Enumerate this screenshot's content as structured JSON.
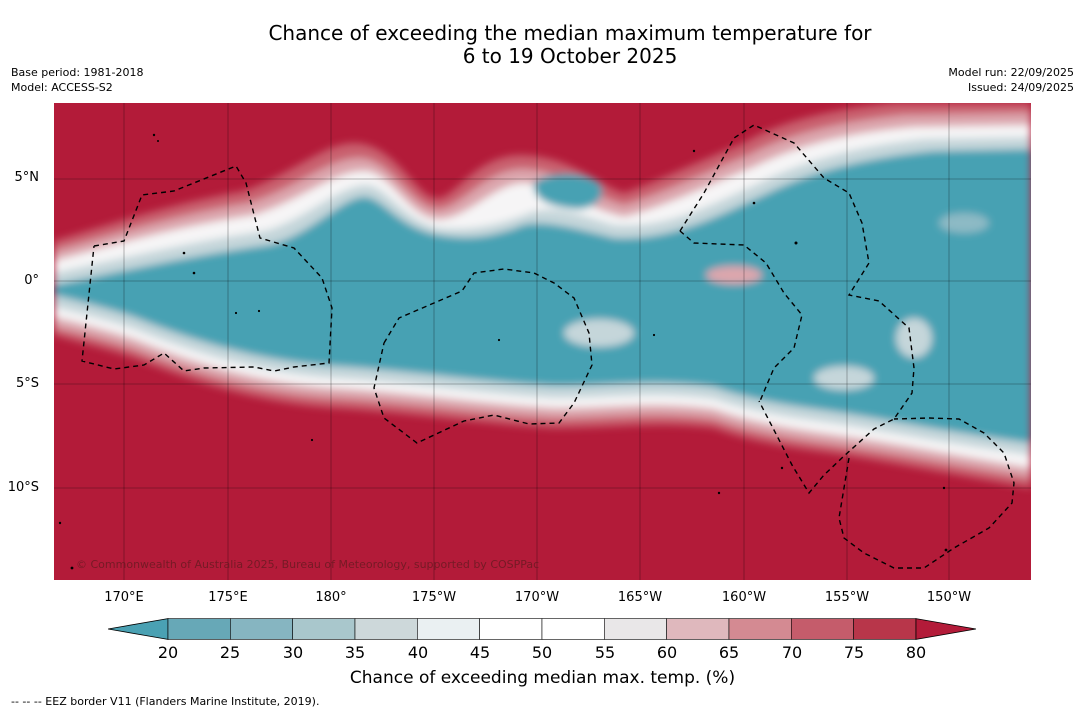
{
  "title_line1": "Chance of exceeding the median maximum temperature for",
  "title_line2": "6 to 19 October 2025",
  "meta": {
    "base_period": "Base period: 1981-2018",
    "model": "Model: ACCESS-S2",
    "model_run": "Model run: 22/09/2025",
    "issued": "Issued: 24/09/2025"
  },
  "copyright": "© Commonwealth of Australia 2025, Bureau of Meteorology, supported by COSPPac",
  "lat_labels": [
    "5°N",
    "0°",
    "5°S",
    "10°S"
  ],
  "lon_labels": [
    "170°E",
    "175°E",
    "180°",
    "175°W",
    "170°W",
    "165°W",
    "160°W",
    "155°W",
    "150°W"
  ],
  "colorbar": {
    "ticks": [
      "20",
      "25",
      "30",
      "35",
      "40",
      "45",
      "50",
      "55",
      "60",
      "65",
      "70",
      "75",
      "80"
    ],
    "colors": [
      "#4aa1b3",
      "#67a8b7",
      "#86b5c1",
      "#a9c7cc",
      "#cdd8da",
      "#eaf0f2",
      "#ffffff",
      "#ffffff",
      "#e9e7e8",
      "#dfb8bd",
      "#d48a92",
      "#c55c6b",
      "#b8364a",
      "#b31b39"
    ],
    "label": "Chance of exceeding median max. temp. (%)"
  },
  "colors": {
    "above": "#b31b39",
    "below": "#47a1b3"
  },
  "legend_note": "--  --  -- EEZ border V11 (Flanders Marine Institute, 2019)."
}
